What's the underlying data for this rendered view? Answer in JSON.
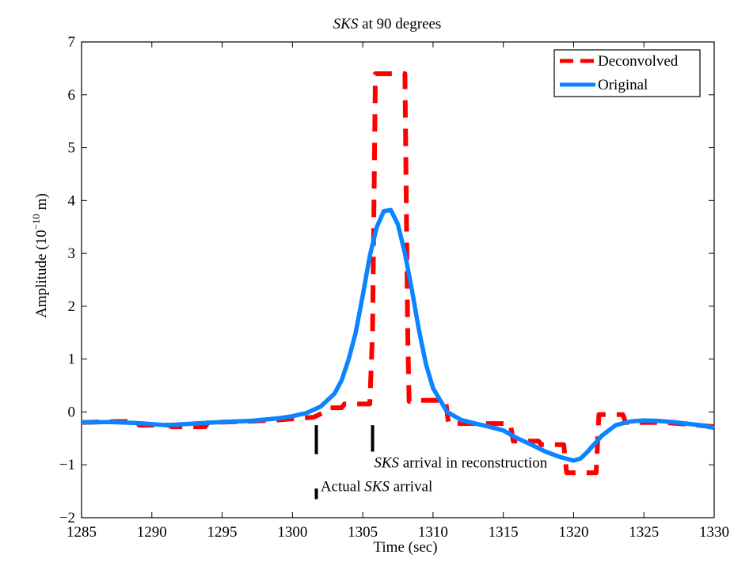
{
  "chart_data": {
    "type": "line",
    "title": {
      "italic": "SKS",
      "rest": " at 90 degrees"
    },
    "xlabel": "Time (sec)",
    "ylabel": {
      "base": "Amplitude (10",
      "sup": "−10",
      "tail": " m)"
    },
    "xlim": [
      1285,
      1330
    ],
    "ylim": [
      -2,
      7
    ],
    "x_ticks": [
      1285,
      1290,
      1295,
      1300,
      1305,
      1310,
      1315,
      1320,
      1325,
      1330
    ],
    "y_ticks": [
      -2,
      -1,
      0,
      1,
      2,
      3,
      4,
      5,
      6,
      7
    ],
    "grid": false,
    "legend": {
      "position": "top-right"
    },
    "series": [
      {
        "name": "Deconvolved",
        "color": "#ff0000",
        "style": "dashed",
        "x": [
          1285,
          1287.5,
          1288.9,
          1289.1,
          1291.2,
          1291.4,
          1293.8,
          1294.0,
          1296.5,
          1299.0,
          1301.5,
          1302.3,
          1302.6,
          1303.5,
          1303.7,
          1305.5,
          1305.7,
          1305.9,
          1306.1,
          1308.0,
          1308.2,
          1308.3,
          1308.5,
          1310.9,
          1311.1,
          1315.5,
          1315.7,
          1317.5,
          1317.7,
          1319.3,
          1319.5,
          1321.6,
          1321.8,
          1323.5,
          1323.7,
          1326.5,
          1328.0,
          1330
        ],
        "y": [
          -0.2,
          -0.18,
          -0.18,
          -0.25,
          -0.25,
          -0.28,
          -0.28,
          -0.2,
          -0.18,
          -0.15,
          -0.1,
          0.0,
          0.08,
          0.08,
          0.15,
          0.15,
          1.5,
          6.4,
          6.4,
          6.4,
          1.5,
          0.2,
          0.22,
          0.22,
          -0.22,
          -0.22,
          -0.55,
          -0.55,
          -0.62,
          -0.62,
          -1.15,
          -1.15,
          -0.05,
          -0.05,
          -0.2,
          -0.2,
          -0.23,
          -0.28
        ]
      },
      {
        "name": "Original",
        "color": "#0a84ff",
        "style": "solid",
        "x": [
          1285,
          1287,
          1289,
          1291,
          1293,
          1295,
          1297,
          1299,
          1300,
          1301,
          1302,
          1303,
          1303.5,
          1304,
          1304.5,
          1305,
          1305.5,
          1306,
          1306.5,
          1307,
          1307.5,
          1308,
          1308.5,
          1309,
          1309.5,
          1310,
          1311,
          1312,
          1313,
          1314,
          1315,
          1316,
          1317,
          1318,
          1319,
          1320,
          1320.5,
          1321,
          1322,
          1323,
          1324,
          1325,
          1326,
          1327,
          1328,
          1329,
          1330
        ],
        "y": [
          -0.2,
          -0.19,
          -0.21,
          -0.25,
          -0.22,
          -0.19,
          -0.17,
          -0.12,
          -0.08,
          -0.02,
          0.1,
          0.35,
          0.6,
          1.0,
          1.5,
          2.2,
          2.95,
          3.5,
          3.8,
          3.82,
          3.55,
          3.0,
          2.3,
          1.55,
          0.9,
          0.45,
          0.0,
          -0.15,
          -0.22,
          -0.28,
          -0.35,
          -0.5,
          -0.62,
          -0.75,
          -0.85,
          -0.92,
          -0.88,
          -0.75,
          -0.45,
          -0.25,
          -0.18,
          -0.16,
          -0.17,
          -0.19,
          -0.22,
          -0.25,
          -0.3
        ]
      }
    ],
    "markers": [
      {
        "name": "actual",
        "x": 1301.7,
        "y": [
          -0.25,
          -0.8
        ]
      },
      {
        "name": "reconstruction",
        "x": 1305.7,
        "y": [
          -0.25,
          -0.75
        ]
      },
      {
        "name": "actual-label-tick",
        "x": 1301.7,
        "y": [
          -1.45,
          -1.65
        ]
      }
    ],
    "annotations": {
      "reconstruction": {
        "italic": "SKS",
        "rest": " arrival in reconstruction",
        "x": 1305.8,
        "y": -1.05
      },
      "actual": {
        "prefix": "Actual ",
        "italic": "SKS",
        "rest": " arrival",
        "x": 1302.0,
        "y": -1.5
      }
    }
  }
}
